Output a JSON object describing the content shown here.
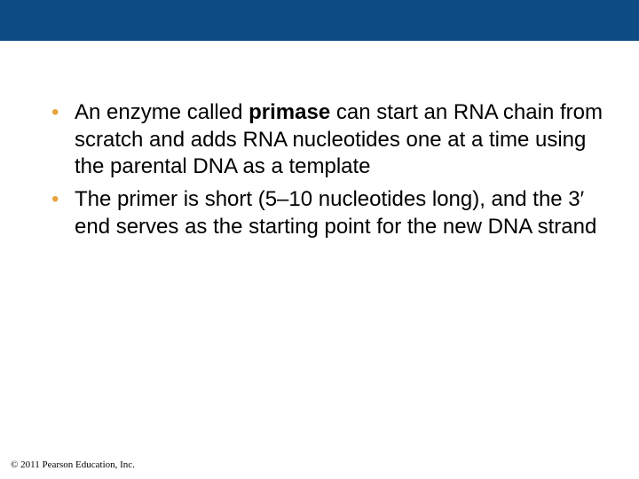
{
  "styling": {
    "slide_width": 720,
    "slide_height": 540,
    "title_bar_color": "#0d4c84",
    "title_bar_height": 46,
    "background_color": "#ffffff",
    "bullet_color": "#e8a33d",
    "bullet_fontsize": 24,
    "body_text_color": "#000000",
    "body_fontsize": 24,
    "body_font": "Arial",
    "footer_fontsize": 11,
    "footer_font": "Times New Roman"
  },
  "bullets": [
    {
      "segments": [
        {
          "text": "An enzyme called ",
          "bold": false
        },
        {
          "text": "primase",
          "bold": true
        },
        {
          "text": " can start an RNA chain from scratch and adds RNA nucleotides one at a time using the parental DNA as a template",
          "bold": false
        }
      ]
    },
    {
      "segments": [
        {
          "text": "The primer is short (5–10 nucleotides long), and the 3′ end serves as the starting point for the new DNA strand",
          "bold": false
        }
      ]
    }
  ],
  "footer": "© 2011 Pearson Education, Inc."
}
